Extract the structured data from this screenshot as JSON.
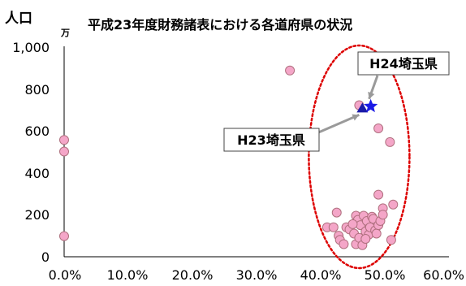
{
  "chart_data": {
    "type": "scatter",
    "title": "平成23年度財務諸表における各道府県の状況",
    "ylabel": "人口",
    "yunit": "万",
    "xlim": [
      0,
      0.6
    ],
    "ylim": [
      0,
      1000
    ],
    "x_ticks": [
      "0.0%",
      "10.0%",
      "20.0%",
      "30.0%",
      "40.0%",
      "50.0%",
      "60.0%"
    ],
    "y_ticks": [
      "0",
      "200",
      "400",
      "600",
      "800",
      "1,000"
    ],
    "grid": false,
    "colors": {
      "points": "#f4a6c8",
      "point_edge": "#b0707f",
      "ellipse": "#dd0000",
      "h23_marker": "#1a1aa8",
      "h24_marker": "#1a1ae6",
      "arrow": "#9a9a9a"
    },
    "points": [
      {
        "x": 0.0,
        "y": 555
      },
      {
        "x": 0.0,
        "y": 500
      },
      {
        "x": 0.0,
        "y": 98
      },
      {
        "x": 0.352,
        "y": 885
      },
      {
        "x": 0.46,
        "y": 720
      },
      {
        "x": 0.49,
        "y": 610
      },
      {
        "x": 0.508,
        "y": 545
      },
      {
        "x": 0.49,
        "y": 295
      },
      {
        "x": 0.497,
        "y": 230
      },
      {
        "x": 0.513,
        "y": 248
      },
      {
        "x": 0.41,
        "y": 140
      },
      {
        "x": 0.42,
        "y": 140
      },
      {
        "x": 0.425,
        "y": 210
      },
      {
        "x": 0.428,
        "y": 100
      },
      {
        "x": 0.43,
        "y": 80
      },
      {
        "x": 0.44,
        "y": 140
      },
      {
        "x": 0.445,
        "y": 130
      },
      {
        "x": 0.452,
        "y": 110
      },
      {
        "x": 0.455,
        "y": 195
      },
      {
        "x": 0.455,
        "y": 60
      },
      {
        "x": 0.458,
        "y": 175
      },
      {
        "x": 0.46,
        "y": 90
      },
      {
        "x": 0.462,
        "y": 150
      },
      {
        "x": 0.465,
        "y": 55
      },
      {
        "x": 0.467,
        "y": 195
      },
      {
        "x": 0.47,
        "y": 120
      },
      {
        "x": 0.472,
        "y": 170
      },
      {
        "x": 0.475,
        "y": 105
      },
      {
        "x": 0.477,
        "y": 140
      },
      {
        "x": 0.48,
        "y": 190
      },
      {
        "x": 0.482,
        "y": 180
      },
      {
        "x": 0.485,
        "y": 125
      },
      {
        "x": 0.487,
        "y": 110
      },
      {
        "x": 0.49,
        "y": 150
      },
      {
        "x": 0.493,
        "y": 170
      },
      {
        "x": 0.497,
        "y": 200
      },
      {
        "x": 0.51,
        "y": 80
      },
      {
        "x": 0.45,
        "y": 155
      },
      {
        "x": 0.47,
        "y": 85
      },
      {
        "x": 0.436,
        "y": 60
      }
    ],
    "highlights": [
      {
        "label": "H23埼玉県",
        "x": 0.465,
        "y": 705,
        "marker": "triangle"
      },
      {
        "label": "H24埼玉県",
        "x": 0.478,
        "y": 715,
        "marker": "star"
      }
    ]
  }
}
